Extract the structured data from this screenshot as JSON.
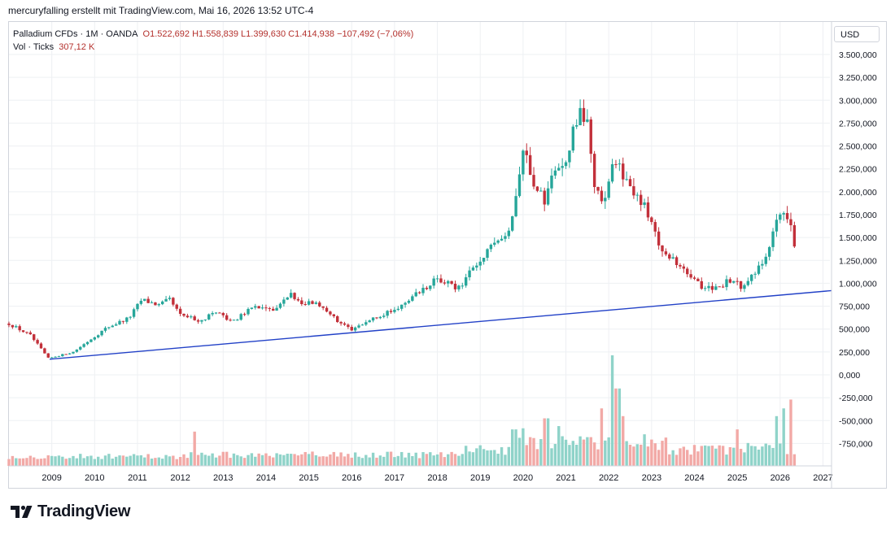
{
  "header": {
    "attribution": "mercuryfalling erstellt mit TradingView.com, Mai 16, 2026 13:52 UTC-4"
  },
  "legend": {
    "symbol": "Palladium CFDs · 1M · OANDA",
    "ohlc": "O1.522,692  H1.558,839  L1.399,630  C1.414,938  −107,492 (−7,06%)",
    "vol_label": "Vol · Ticks",
    "vol_value": "307,12 K"
  },
  "currency_button": "USD",
  "logo_text": "TradingView",
  "colors": {
    "up": "#26a69a",
    "down": "#c2303a",
    "trendline": "#2241c7",
    "vol_up": "#8fd3c9",
    "vol_down": "#f2a9a6",
    "grid": "#eef0f3"
  },
  "chart_data": {
    "type": "candlestick",
    "title": "Palladium CFDs · 1M · OANDA",
    "ylim": [
      -1000000,
      3750000
    ],
    "y_ticks": [
      "3.500,000",
      "3.250,000",
      "3.000,000",
      "2.750,000",
      "2.500,000",
      "2.250,000",
      "2.000,000",
      "1.750,000",
      "1.500,000",
      "1.250,000",
      "1.000,000",
      "750,000",
      "500,000",
      "250,000",
      "0,000",
      "-250,000",
      "-500,000",
      "-750,000"
    ],
    "y_tick_values": [
      3500000,
      3250000,
      3000000,
      2750000,
      2500000,
      2250000,
      2000000,
      1750000,
      1500000,
      1250000,
      1000000,
      750000,
      500000,
      250000,
      0,
      -250000,
      -500000,
      -750000
    ],
    "x_ticks": [
      "2009",
      "2010",
      "2011",
      "2012",
      "2013",
      "2014",
      "2015",
      "2016",
      "2017",
      "2018",
      "2019",
      "2020",
      "2021",
      "2022",
      "2023",
      "2024",
      "2025",
      "2026",
      "2027"
    ],
    "x_tick_years": [
      2009,
      2010,
      2011,
      2012,
      2013,
      2014,
      2015,
      2016,
      2017,
      2018,
      2019,
      2020,
      2021,
      2022,
      2023,
      2024,
      2025,
      2026,
      2027
    ],
    "x_start": 2008.0,
    "x_end": 2027.2,
    "trendline": {
      "x": [
        2008.95,
        2027.2
      ],
      "y": [
        170000,
        920000
      ]
    },
    "close_anchors": [
      [
        2008.0,
        560000
      ],
      [
        2008.5,
        430000
      ],
      [
        2008.92,
        180000
      ],
      [
        2009.5,
        250000
      ],
      [
        2010.0,
        420000
      ],
      [
        2010.3,
        520000
      ],
      [
        2010.8,
        620000
      ],
      [
        2011.1,
        820000
      ],
      [
        2011.5,
        760000
      ],
      [
        2011.75,
        820000
      ],
      [
        2012.0,
        650000
      ],
      [
        2012.5,
        590000
      ],
      [
        2012.8,
        690000
      ],
      [
        2013.2,
        580000
      ],
      [
        2013.7,
        740000
      ],
      [
        2014.2,
        700000
      ],
      [
        2014.6,
        880000
      ],
      [
        2014.8,
        800000
      ],
      [
        2015.3,
        760000
      ],
      [
        2015.6,
        620000
      ],
      [
        2016.0,
        480000
      ],
      [
        2016.5,
        630000
      ],
      [
        2017.0,
        700000
      ],
      [
        2017.5,
        880000
      ],
      [
        2018.0,
        1050000
      ],
      [
        2018.5,
        950000
      ],
      [
        2018.9,
        1200000
      ],
      [
        2019.3,
        1400000
      ],
      [
        2019.7,
        1600000
      ],
      [
        2020.0,
        2500000
      ],
      [
        2020.25,
        2100000
      ],
      [
        2020.5,
        1900000
      ],
      [
        2020.8,
        2350000
      ],
      [
        2021.0,
        2300000
      ],
      [
        2021.3,
        2900000
      ],
      [
        2021.5,
        2700000
      ],
      [
        2021.7,
        2000000
      ],
      [
        2021.9,
        1850000
      ],
      [
        2022.1,
        2400000
      ],
      [
        2022.3,
        2200000
      ],
      [
        2022.6,
        2000000
      ],
      [
        2022.9,
        1800000
      ],
      [
        2023.2,
        1400000
      ],
      [
        2023.5,
        1250000
      ],
      [
        2023.9,
        1050000
      ],
      [
        2024.2,
        950000
      ],
      [
        2024.6,
        970000
      ],
      [
        2024.9,
        1050000
      ],
      [
        2025.1,
        950000
      ],
      [
        2025.4,
        1100000
      ],
      [
        2025.7,
        1350000
      ],
      [
        2025.95,
        1700000
      ],
      [
        2026.15,
        1750000
      ],
      [
        2026.35,
        1420000
      ]
    ],
    "volume_peaks": [
      [
        2012.35,
        0.31
      ],
      [
        2019.8,
        0.33
      ],
      [
        2020.0,
        0.34
      ],
      [
        2020.55,
        0.43
      ],
      [
        2020.85,
        0.36
      ],
      [
        2021.55,
        0.26
      ],
      [
        2021.85,
        0.52
      ],
      [
        2022.08,
        1.0
      ],
      [
        2022.2,
        0.7
      ],
      [
        2022.32,
        0.45
      ],
      [
        2025.0,
        0.33
      ],
      [
        2025.9,
        0.45
      ],
      [
        2026.1,
        0.52
      ],
      [
        2026.25,
        0.6
      ]
    ]
  }
}
